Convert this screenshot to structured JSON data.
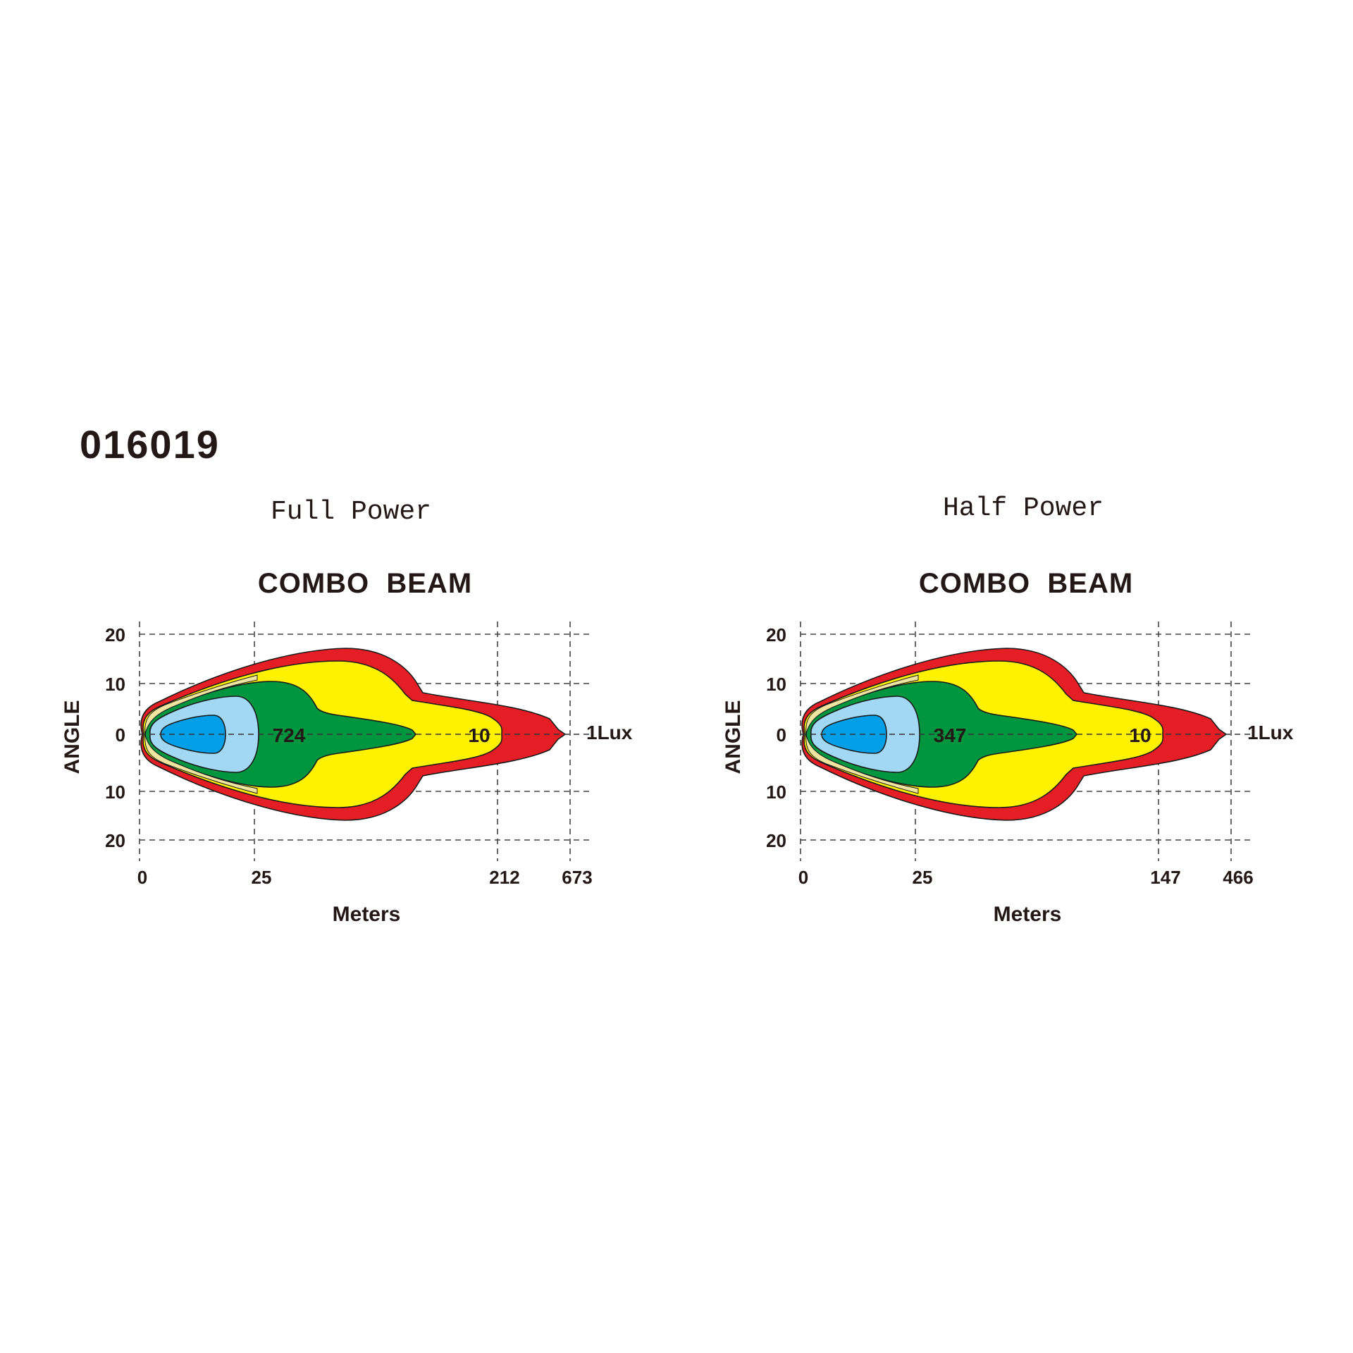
{
  "model": "016019",
  "chart_data": [
    {
      "type": "isolux-diagram",
      "subtitle": "Full Power",
      "title": "COMBO  BEAM",
      "xlabel": "Meters",
      "ylabel": "ANGLE",
      "x_ticks": [
        "0",
        "25",
        "212",
        "673"
      ],
      "y_ticks": [
        "20",
        "10",
        "0",
        "10",
        "20"
      ],
      "grid": true,
      "contours": [
        {
          "label": "724",
          "color": "#e51e25"
        },
        {
          "label": "",
          "color": "#fff200"
        },
        {
          "label": "",
          "color": "#009640"
        },
        {
          "label": "10",
          "color": "#a2d8f3"
        },
        {
          "label": "1Lux",
          "color": "#009fe8"
        }
      ],
      "color_band": "#efe5a0"
    },
    {
      "type": "isolux-diagram",
      "subtitle": "Half Power",
      "title": "COMBO  BEAM",
      "xlabel": "Meters",
      "ylabel": "ANGLE",
      "x_ticks": [
        "0",
        "25",
        "147",
        "466"
      ],
      "y_ticks": [
        "20",
        "10",
        "0",
        "10",
        "20"
      ],
      "grid": true,
      "contours": [
        {
          "label": "347",
          "color": "#e51e25"
        },
        {
          "label": "",
          "color": "#fff200"
        },
        {
          "label": "",
          "color": "#009640"
        },
        {
          "label": "10",
          "color": "#a2d8f3"
        },
        {
          "label": "1Lux",
          "color": "#009fe8"
        }
      ],
      "color_band": "#efe5a0"
    }
  ]
}
